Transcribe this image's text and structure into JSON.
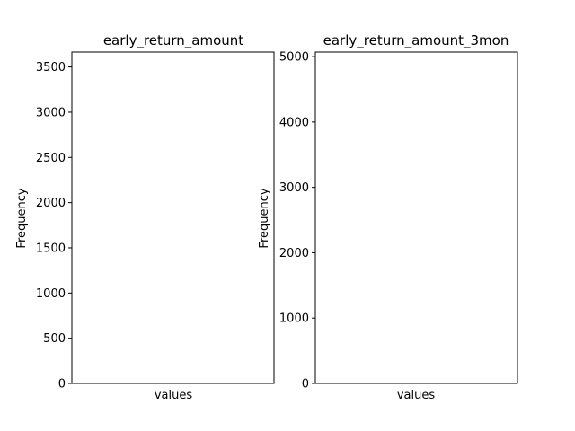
{
  "chart_data": [
    {
      "type": "bar",
      "title": "early_return_amount",
      "xlabel": "values",
      "ylabel": "Frequency",
      "categories": [],
      "values": [],
      "ylim": [
        0,
        3665
      ],
      "yticks": [
        0,
        500,
        1000,
        1500,
        2000,
        2500,
        3000,
        3500
      ],
      "grid": false
    },
    {
      "type": "bar",
      "title": "early_return_amount_3mon",
      "xlabel": "values",
      "ylabel": "Frequency",
      "categories": [],
      "values": [],
      "ylim": [
        0,
        5070
      ],
      "yticks": [
        0,
        1000,
        2000,
        3000,
        4000,
        5000
      ],
      "grid": false
    }
  ]
}
